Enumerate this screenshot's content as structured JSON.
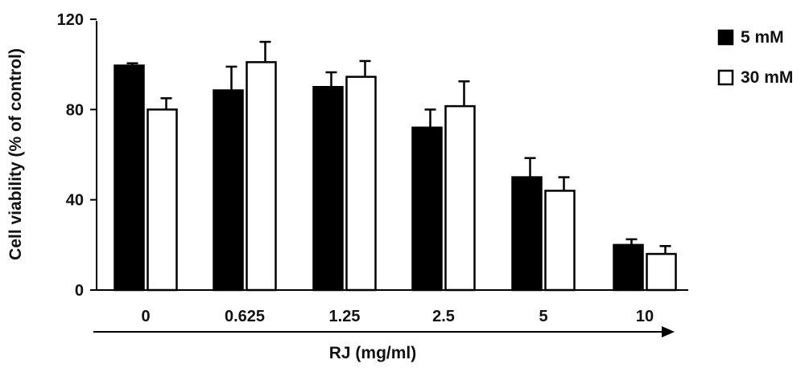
{
  "chart_data": {
    "type": "bar",
    "categories": [
      "0",
      "0.625",
      "1.25",
      "2.5",
      "5",
      "10"
    ],
    "series": [
      {
        "name": "5 mM",
        "color": "#000000",
        "values": [
          99.5,
          88.5,
          90,
          72,
          50,
          20
        ],
        "errors": [
          1,
          10.5,
          6.5,
          8,
          8.5,
          2.5
        ]
      },
      {
        "name": "30 mM",
        "color": "#ffffff",
        "values": [
          80,
          101,
          94.5,
          81.5,
          44,
          16
        ],
        "errors": [
          5,
          9,
          7,
          11,
          6,
          3.5
        ]
      }
    ],
    "xlabel": "RJ (mg/ml)",
    "ylabel": "Cell viability (% of control)",
    "ylim": [
      0,
      120
    ],
    "yticks": [
      "0",
      "40",
      "80",
      "120"
    ],
    "legend_position": "top-right",
    "grid": false
  }
}
